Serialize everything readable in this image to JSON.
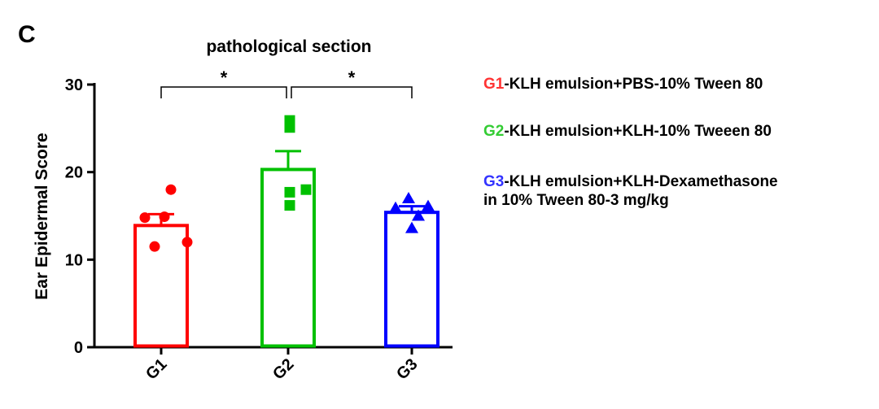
{
  "chart_data": {
    "type": "bar",
    "panel_label": "C",
    "title": "pathological section",
    "xlabel": "",
    "ylabel": "Ear Epidermal Score",
    "ylim": [
      0,
      30
    ],
    "yticks": [
      0,
      10,
      20,
      30
    ],
    "grid": false,
    "categories": [
      "G1",
      "G2",
      "G3"
    ],
    "values": [
      13.9,
      20.3,
      15.4
    ],
    "errors": [
      1.3,
      2.1,
      0.7
    ],
    "colors": [
      "#ff0000",
      "#00c000",
      "#0000ff"
    ],
    "markers": [
      "circle",
      "square",
      "triangle"
    ],
    "points": [
      [
        18.0,
        14.9,
        14.8,
        12.0,
        11.5
      ],
      [
        25.9,
        25.1,
        18.0,
        17.7,
        16.2
      ],
      [
        17.0,
        16.1,
        15.9,
        15.0,
        13.6
      ]
    ],
    "significance": [
      {
        "from": 0,
        "to": 1,
        "label": "*"
      },
      {
        "from": 1,
        "to": 2,
        "label": "*"
      }
    ],
    "legend": [
      {
        "code": "G1",
        "text": "-KLH emulsion+PBS-10% Tween 80",
        "color": "#ff3333"
      },
      {
        "code": "G2",
        "text": "-KLH emulsion+KLH-10% Tweeen 80",
        "color": "#33cc33"
      },
      {
        "code": "G3",
        "text": "-KLH emulsion+KLH-Dexamethasone",
        "text2": "in 10% Tween 80-3 mg/kg",
        "color": "#3333ff"
      }
    ],
    "legend_position": "right"
  }
}
